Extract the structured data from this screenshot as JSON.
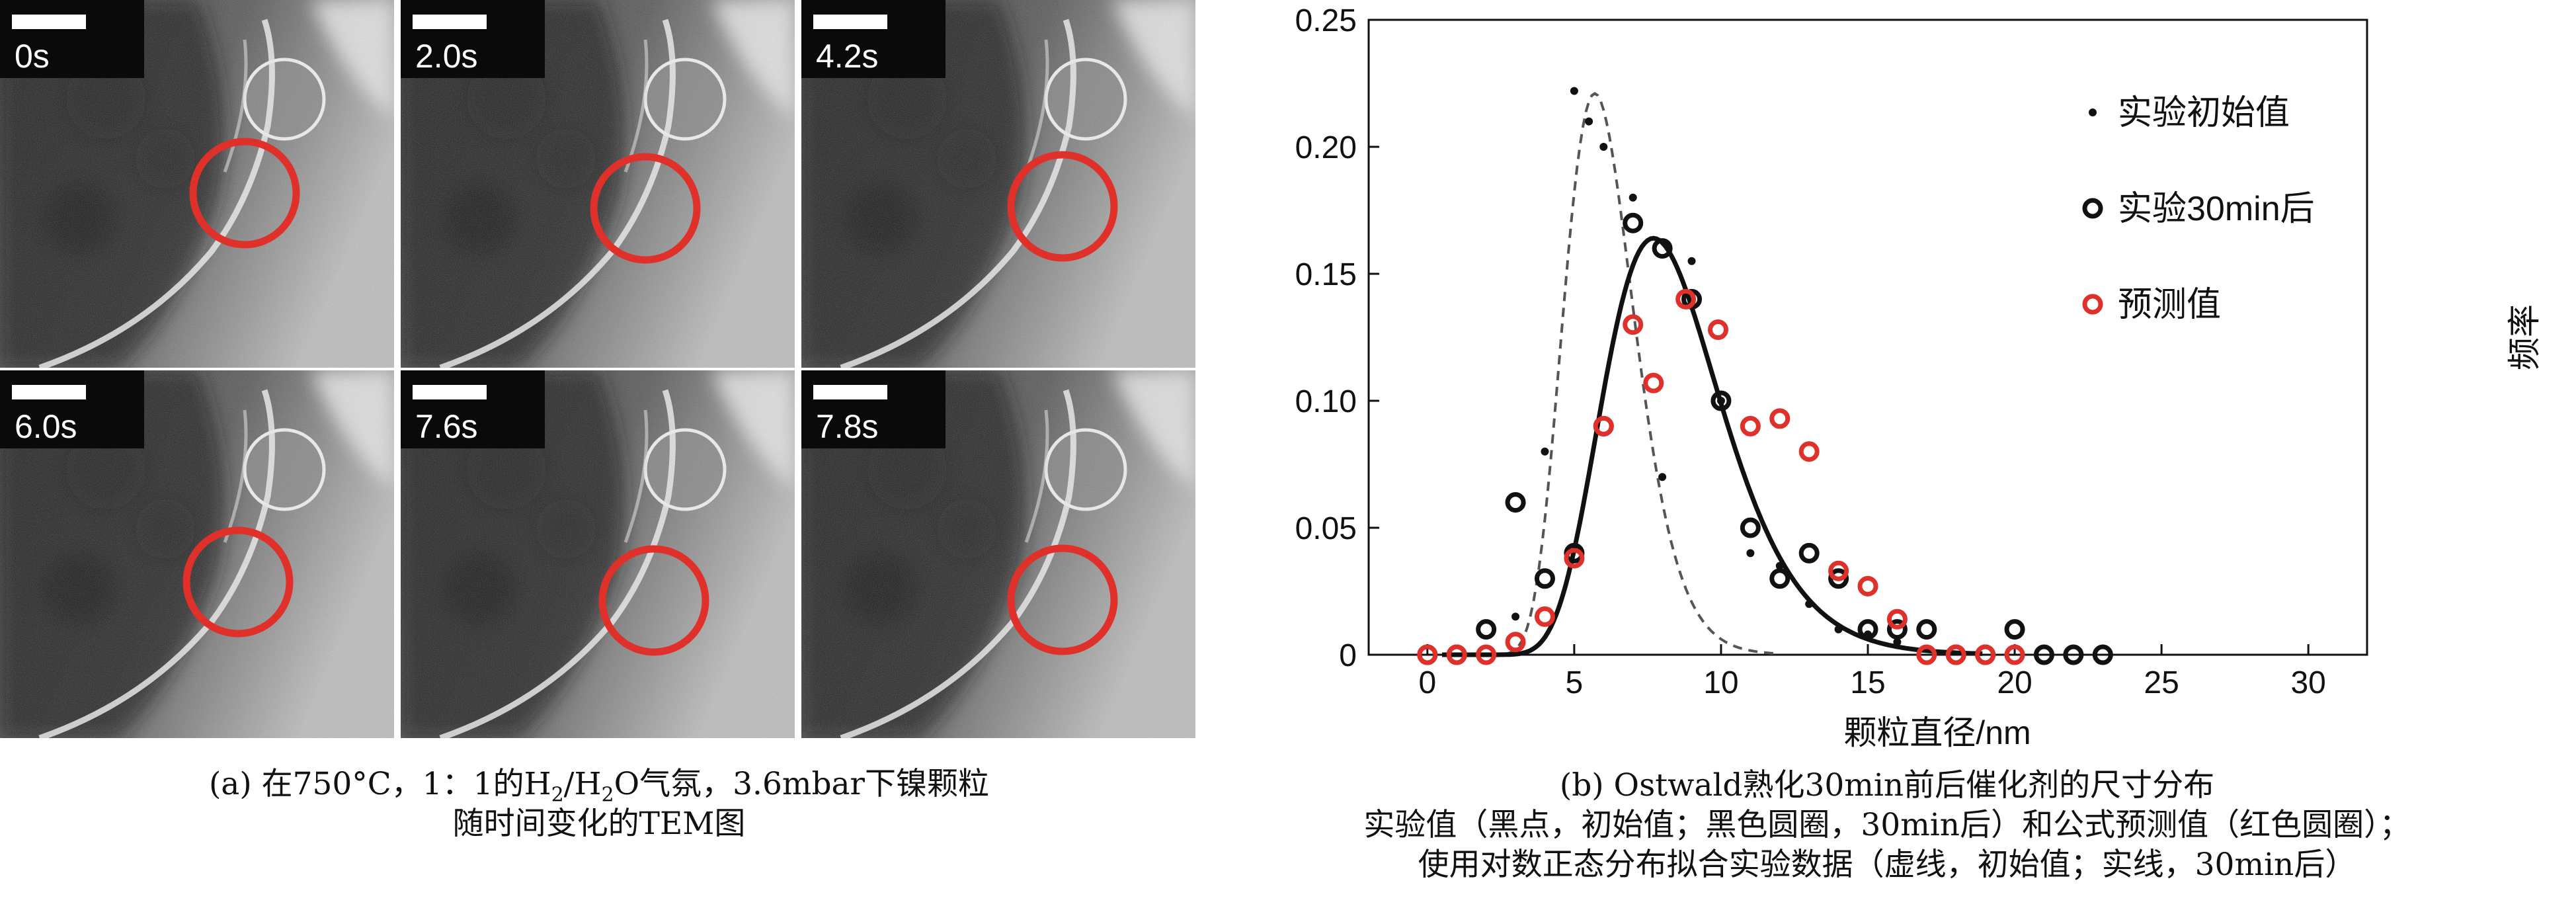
{
  "tem": {
    "panels": [
      {
        "label": "0s"
      },
      {
        "label": "2.0s"
      },
      {
        "label": "4.2s"
      },
      {
        "label": "6.0s"
      },
      {
        "label": "7.6s"
      },
      {
        "label": "7.8s"
      }
    ],
    "circle_color": "#e0302a",
    "caption_a_prefix": "(a) 在750°C，1：1的H",
    "caption_a_sub1": "2",
    "caption_a_mid": "/H",
    "caption_a_sub2": "2",
    "caption_a_suffix": "O气氛，3.6mbar下镍颗粒",
    "caption_a_line2": "随时间变化的TEM图"
  },
  "captions": {
    "b_line1": "(b) Ostwald熟化30min前后催化剂的尺寸分布",
    "b_line2": "实验值（黑点，初始值；黑色圆圈，30min后）和公式预测值（红色圆圈）；",
    "b_line3": "使用对数正态分布拟合实验数据（虚线，初始值；实线，30min后）"
  },
  "chart_data": {
    "type": "scatter",
    "xlabel": "颗粒直径/nm",
    "ylabel": "频率",
    "xlim": [
      -2,
      32
    ],
    "ylim": [
      0,
      0.25
    ],
    "xticks": [
      "0",
      "5",
      "10",
      "15",
      "20",
      "25",
      "30"
    ],
    "yticks": [
      "0",
      "0.05",
      "0.10",
      "0.15",
      "0.20",
      "0.25"
    ],
    "legend_position": "top-right",
    "colors": {
      "black": "#111111",
      "red": "#e0302a",
      "dash": "#555555"
    },
    "series": [
      {
        "name": "实验初始值",
        "marker": "dot",
        "x": [
          3,
          4,
          5,
          5.5,
          6,
          7,
          8,
          9,
          10,
          11,
          12,
          13,
          14,
          15,
          16
        ],
        "y": [
          0.015,
          0.08,
          0.222,
          0.21,
          0.2,
          0.18,
          0.07,
          0.155,
          0.1,
          0.04,
          0.035,
          0.02,
          0.01,
          0.008,
          0.005
        ]
      },
      {
        "name": "实验30min后",
        "marker": "circle",
        "x": [
          0,
          1,
          2,
          3,
          4,
          5,
          6,
          7,
          8,
          9,
          10,
          11,
          12,
          13,
          14,
          15,
          16,
          17,
          18,
          19,
          20,
          21,
          22,
          23
        ],
        "y": [
          0,
          0,
          0.01,
          0.06,
          0.03,
          0.04,
          0.09,
          0.17,
          0.16,
          0.14,
          0.1,
          0.05,
          0.03,
          0.04,
          0.03,
          0.01,
          0.01,
          0.01,
          0,
          0,
          0.01,
          0,
          0,
          0
        ]
      },
      {
        "name": "预测值",
        "marker": "circle-red",
        "x": [
          0,
          1,
          2,
          3,
          4,
          5,
          6,
          7,
          7.7,
          8.8,
          9.9,
          11,
          12,
          13,
          14,
          15,
          16,
          17,
          18,
          19,
          20
        ],
        "y": [
          0,
          0,
          0,
          0.005,
          0.015,
          0.038,
          0.09,
          0.13,
          0.107,
          0.14,
          0.128,
          0.09,
          0.093,
          0.08,
          0.033,
          0.027,
          0.014,
          0,
          0,
          0,
          0
        ]
      }
    ],
    "fits": [
      {
        "style": "dashed",
        "mode_x": 5.7,
        "peak_y": 0.221,
        "sigma_ln": 0.21
      },
      {
        "style": "solid",
        "mode_x": 7.7,
        "peak_y": 0.164,
        "sigma_ln": 0.26
      }
    ]
  }
}
